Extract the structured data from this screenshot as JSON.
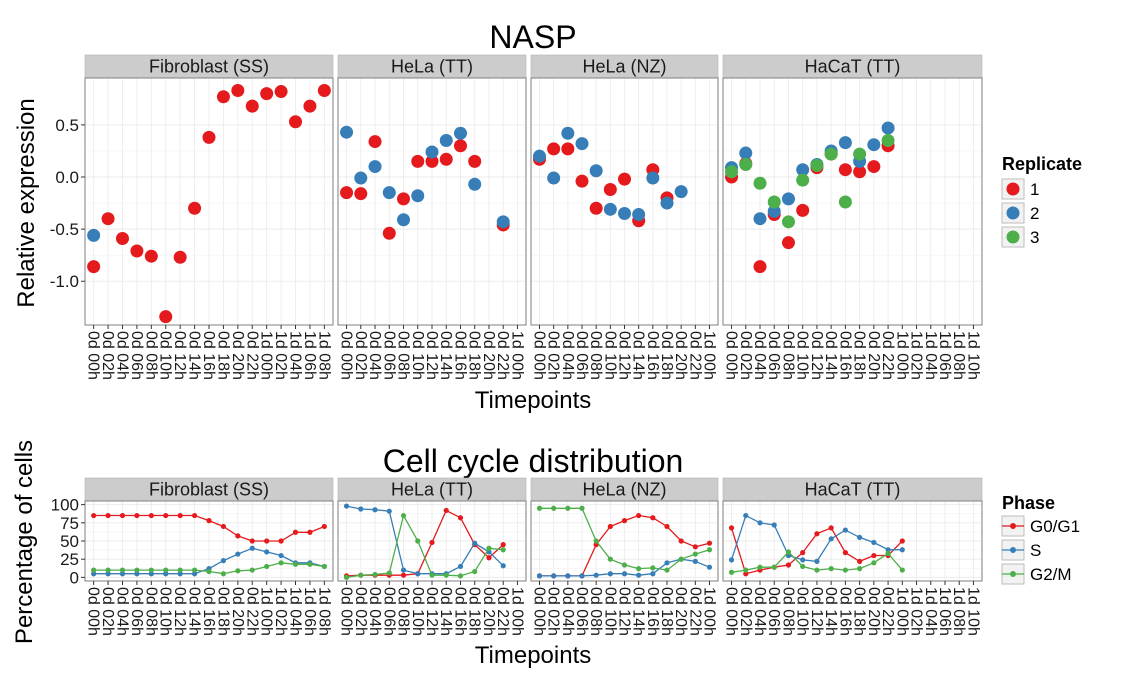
{
  "chart_data": [
    {
      "type": "scatter",
      "title": "NASP",
      "xlabel": "Timepoints",
      "ylabel": "Relative expression",
      "ylim": [
        -1.42,
        0.95
      ],
      "yticks": [
        0.5,
        0.0,
        -0.5,
        -1.0
      ],
      "ytick_labels": [
        "0.5",
        "0.0",
        "-0.5",
        "-1.0"
      ],
      "legend": {
        "title": "Replicate",
        "placement": "right",
        "entries": [
          {
            "label": "1",
            "color": "#E41A1C"
          },
          {
            "label": "2",
            "color": "#377EB8"
          },
          {
            "label": "3",
            "color": "#4DAF4A"
          }
        ]
      },
      "panels": [
        {
          "strip": "Fibroblast (SS)",
          "categories": [
            "0d 00h",
            "0d 02h",
            "0d 04h",
            "0d 06h",
            "0d 08h",
            "0d 10h",
            "0d 12h",
            "0d 14h",
            "0d 16h",
            "0d 18h",
            "0d 20h",
            "0d 22h",
            "1d 00h",
            "1d 02h",
            "1d 04h",
            "1d 06h",
            "1d 08h"
          ],
          "series": [
            {
              "name": "1",
              "values": [
                -0.86,
                -0.4,
                -0.59,
                -0.71,
                -0.76,
                -1.34,
                -0.77,
                -0.3,
                0.38,
                0.77,
                0.83,
                0.68,
                0.8,
                0.82,
                0.53,
                0.68,
                0.83
              ]
            },
            {
              "name": "2",
              "values": [
                -0.56,
                null,
                null,
                null,
                null,
                null,
                null,
                null,
                null,
                null,
                null,
                null,
                null,
                null,
                null,
                null,
                null
              ]
            }
          ]
        },
        {
          "strip": "HeLa (TT)",
          "categories": [
            "0d 00h",
            "0d 02h",
            "0d 04h",
            "0d 06h",
            "0d 08h",
            "0d 10h",
            "0d 12h",
            "0d 14h",
            "0d 16h",
            "0d 18h",
            "0d 20h",
            "0d 22h",
            "1d 00h"
          ],
          "series": [
            {
              "name": "1",
              "values": [
                -0.15,
                -0.16,
                0.34,
                -0.54,
                -0.21,
                0.15,
                0.15,
                0.17,
                0.3,
                0.15,
                null,
                -0.46,
                null
              ]
            },
            {
              "name": "2",
              "values": [
                0.43,
                -0.01,
                0.1,
                -0.15,
                -0.41,
                -0.18,
                0.24,
                0.35,
                0.42,
                -0.07,
                null,
                -0.43,
                null
              ]
            }
          ]
        },
        {
          "strip": "HeLa (NZ)",
          "categories": [
            "0d 00h",
            "0d 02h",
            "0d 04h",
            "0d 06h",
            "0d 08h",
            "0d 10h",
            "0d 12h",
            "0d 14h",
            "0d 16h",
            "0d 18h",
            "0d 20h",
            "0d 22h",
            "1d 00h"
          ],
          "series": [
            {
              "name": "1",
              "values": [
                0.17,
                0.27,
                0.27,
                -0.04,
                -0.3,
                -0.12,
                -0.02,
                -0.42,
                0.07,
                -0.2,
                null,
                null,
                null
              ]
            },
            {
              "name": "2",
              "values": [
                0.2,
                -0.01,
                0.42,
                0.32,
                0.06,
                -0.31,
                -0.35,
                -0.36,
                -0.01,
                -0.25,
                -0.14,
                null,
                null
              ]
            }
          ]
        },
        {
          "strip": "HaCaT (TT)",
          "categories": [
            "0d 00h",
            "0d 02h",
            "0d 04h",
            "0d 06h",
            "0d 08h",
            "0d 10h",
            "0d 12h",
            "0d 14h",
            "0d 16h",
            "0d 18h",
            "0d 20h",
            "0d 22h",
            "1d 00h",
            "1d 02h",
            "1d 04h",
            "1d 06h",
            "1d 08h",
            "1d 10h"
          ],
          "series": [
            {
              "name": "1",
              "values": [
                0.0,
                0.13,
                -0.86,
                -0.36,
                -0.63,
                -0.32,
                0.09,
                0.22,
                0.07,
                0.05,
                0.1,
                0.3,
                null,
                null,
                null,
                null,
                null,
                null
              ]
            },
            {
              "name": "2",
              "values": [
                0.09,
                0.23,
                -0.4,
                -0.33,
                -0.21,
                0.07,
                0.12,
                0.25,
                0.33,
                0.15,
                0.31,
                0.47,
                null,
                null,
                null,
                null,
                null,
                null
              ]
            },
            {
              "name": "3",
              "values": [
                0.05,
                0.12,
                -0.06,
                -0.24,
                -0.43,
                -0.03,
                0.11,
                0.22,
                -0.24,
                0.22,
                null,
                0.35,
                null,
                null,
                null,
                null,
                null,
                null
              ]
            }
          ]
        }
      ]
    },
    {
      "type": "line",
      "title": "Cell cycle distribution",
      "xlabel": "Timepoints",
      "ylabel": "Percentage of cells",
      "ylim": [
        -5,
        105
      ],
      "yticks": [
        100,
        75,
        50,
        25,
        0
      ],
      "ytick_labels": [
        "100",
        "75",
        "50",
        "25",
        "0"
      ],
      "legend": {
        "title": "Phase",
        "placement": "right",
        "entries": [
          {
            "label": "G0/G1",
            "color": "#E41A1C"
          },
          {
            "label": "S",
            "color": "#377EB8"
          },
          {
            "label": "G2/M",
            "color": "#4DAF4A"
          }
        ]
      },
      "panels": [
        {
          "strip": "Fibroblast (SS)",
          "categories": [
            "0d 00h",
            "0d 02h",
            "0d 04h",
            "0d 06h",
            "0d 08h",
            "0d 10h",
            "0d 12h",
            "0d 14h",
            "0d 16h",
            "0d 18h",
            "0d 20h",
            "0d 22h",
            "1d 00h",
            "1d 02h",
            "1d 04h",
            "1d 06h",
            "1d 08h"
          ],
          "series": [
            {
              "name": "G0/G1",
              "values": [
                85,
                85,
                85,
                85,
                85,
                85,
                85,
                85,
                78,
                70,
                57,
                50,
                50,
                50,
                62,
                62,
                70
              ]
            },
            {
              "name": "S",
              "values": [
                5,
                5,
                5,
                5,
                5,
                5,
                5,
                5,
                12,
                23,
                32,
                40,
                35,
                30,
                20,
                20,
                15
              ]
            },
            {
              "name": "G2/M",
              "values": [
                10,
                10,
                10,
                10,
                10,
                10,
                10,
                10,
                8,
                5,
                9,
                10,
                15,
                20,
                18,
                18,
                15
              ]
            }
          ]
        },
        {
          "strip": "HeLa (TT)",
          "categories": [
            "0d 00h",
            "0d 02h",
            "0d 04h",
            "0d 06h",
            "0d 08h",
            "0d 10h",
            "0d 12h",
            "0d 14h",
            "0d 16h",
            "0d 18h",
            "0d 20h",
            "0d 22h",
            "1d 00h"
          ],
          "series": [
            {
              "name": "G0/G1",
              "values": [
                2,
                3,
                3,
                3,
                3,
                5,
                48,
                92,
                82,
                45,
                27,
                45,
                null
              ]
            },
            {
              "name": "S",
              "values": [
                98,
                94,
                93,
                91,
                10,
                5,
                5,
                5,
                15,
                47,
                35,
                16,
                null
              ]
            },
            {
              "name": "G2/M",
              "values": [
                0,
                3,
                4,
                6,
                85,
                50,
                3,
                3,
                2,
                8,
                40,
                38,
                null
              ]
            }
          ]
        },
        {
          "strip": "HeLa (NZ)",
          "categories": [
            "0d 00h",
            "0d 02h",
            "0d 04h",
            "0d 06h",
            "0d 08h",
            "0d 10h",
            "0d 12h",
            "0d 14h",
            "0d 16h",
            "0d 18h",
            "0d 20h",
            "0d 22h",
            "1d 00h"
          ],
          "series": [
            {
              "name": "G0/G1",
              "values": [
                2,
                2,
                2,
                2,
                45,
                70,
                78,
                85,
                82,
                70,
                50,
                42,
                47
              ]
            },
            {
              "name": "S",
              "values": [
                2,
                2,
                2,
                2,
                3,
                5,
                5,
                3,
                5,
                20,
                25,
                22,
                14
              ]
            },
            {
              "name": "G2/M",
              "values": [
                95,
                95,
                95,
                95,
                50,
                25,
                17,
                12,
                13,
                10,
                25,
                32,
                38
              ]
            }
          ]
        },
        {
          "strip": "HaCaT (TT)",
          "categories": [
            "0d 00h",
            "0d 02h",
            "0d 04h",
            "0d 06h",
            "0d 08h",
            "0d 10h",
            "0d 12h",
            "0d 14h",
            "0d 16h",
            "0d 18h",
            "0d 20h",
            "0d 22h",
            "1d 00h",
            "1d 02h",
            "1d 04h",
            "1d 06h",
            "1d 08h",
            "1d 10h"
          ],
          "series": [
            {
              "name": "G0/G1",
              "values": [
                68,
                5,
                10,
                14,
                17,
                34,
                60,
                68,
                34,
                22,
                30,
                30,
                50,
                null,
                null,
                null,
                null,
                null
              ]
            },
            {
              "name": "S",
              "values": [
                24,
                85,
                75,
                72,
                30,
                24,
                22,
                53,
                65,
                55,
                48,
                38,
                38,
                null,
                null,
                null,
                null,
                null
              ]
            },
            {
              "name": "G2/M",
              "values": [
                7,
                10,
                14,
                14,
                35,
                15,
                10,
                12,
                10,
                12,
                20,
                33,
                10,
                null,
                null,
                null,
                null,
                null
              ]
            }
          ]
        }
      ]
    }
  ]
}
